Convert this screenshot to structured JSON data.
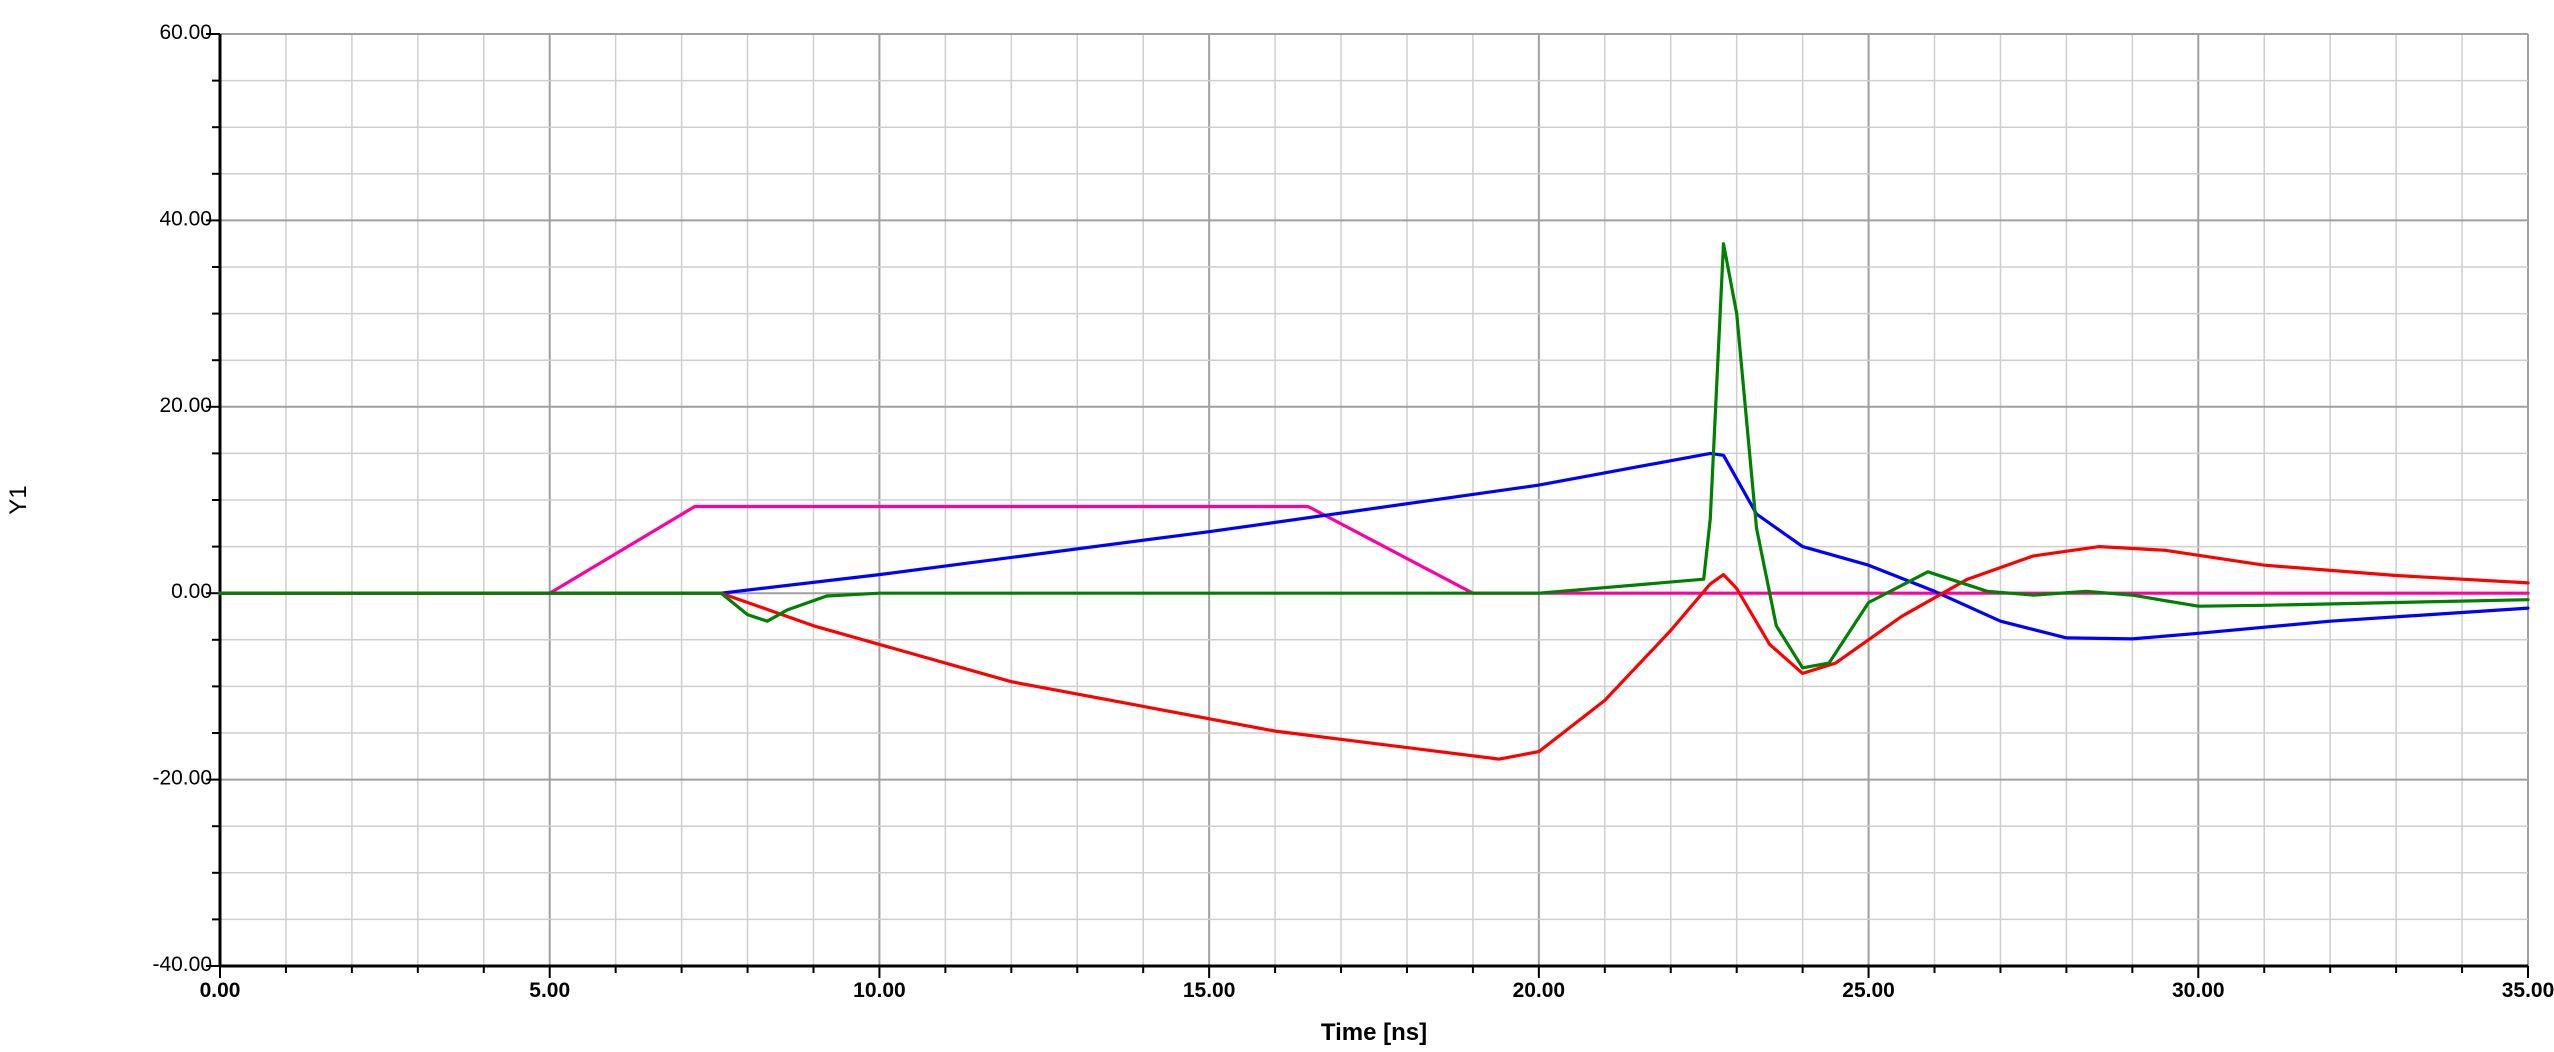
{
  "chart_data": {
    "type": "line",
    "title": "",
    "xlabel": "Time [ns]",
    "ylabel": "Y1",
    "xlim": [
      0,
      35
    ],
    "ylim": [
      -40,
      60
    ],
    "grid": true,
    "legend": "none",
    "x_ticks": [
      "0.00",
      "5.00",
      "10.00",
      "15.00",
      "20.00",
      "25.00",
      "30.00",
      "35.00"
    ],
    "y_ticks": [
      "60.00",
      "40.00",
      "20.00",
      "0.00",
      "-20.00",
      "-40.00"
    ],
    "series": [
      {
        "color": "#ff00a0",
        "x": [
          0,
          5.0,
          7.2,
          16.5,
          19.0,
          35.0
        ],
        "y": [
          0,
          0,
          9.3,
          9.3,
          0,
          0
        ]
      },
      {
        "color": "#0000ff",
        "x": [
          0,
          7.6,
          10,
          15,
          20,
          22.6,
          22.8,
          23.3,
          24.0,
          25.0,
          26.0,
          27.0,
          28.0,
          29.0,
          30.0,
          32.0,
          35.0
        ],
        "y": [
          0,
          0,
          2.0,
          6.6,
          11.6,
          15.0,
          14.8,
          8.5,
          5.0,
          3.0,
          0.2,
          -3.0,
          -4.8,
          -4.9,
          -4.3,
          -3.0,
          -1.6
        ]
      },
      {
        "color": "#ff0000",
        "x": [
          0,
          7.6,
          9.0,
          12.0,
          16.0,
          19.4,
          20.0,
          21.0,
          22.0,
          22.6,
          22.8,
          23.0,
          23.5,
          24.0,
          24.5,
          25.5,
          26.5,
          27.5,
          28.5,
          29.5,
          31.0,
          33.0,
          35.0
        ],
        "y": [
          0,
          0,
          -3.5,
          -9.5,
          -14.8,
          -17.8,
          -17.0,
          -11.5,
          -4.0,
          1.0,
          2.0,
          0.5,
          -5.5,
          -8.6,
          -7.5,
          -2.5,
          1.5,
          4.0,
          5.0,
          4.6,
          3.0,
          1.9,
          1.1
        ]
      },
      {
        "color": "#008000",
        "x": [
          0,
          7.6,
          8.0,
          8.3,
          8.6,
          9.2,
          10.0,
          14.0,
          20.0,
          22.5,
          22.6,
          22.8,
          23.0,
          23.3,
          23.6,
          24.0,
          24.4,
          25.0,
          25.9,
          26.8,
          27.5,
          28.3,
          29.0,
          30.0,
          31.0,
          33.0,
          35.0
        ],
        "y": [
          0,
          0,
          -2.3,
          -3.0,
          -1.8,
          -0.3,
          0,
          0,
          0,
          1.5,
          8.0,
          37.5,
          30.0,
          7.0,
          -3.5,
          -8.0,
          -7.5,
          -1.0,
          2.3,
          0.2,
          -0.2,
          0.2,
          -0.2,
          -1.4,
          -1.3,
          -1.0,
          -0.7
        ]
      }
    ]
  }
}
